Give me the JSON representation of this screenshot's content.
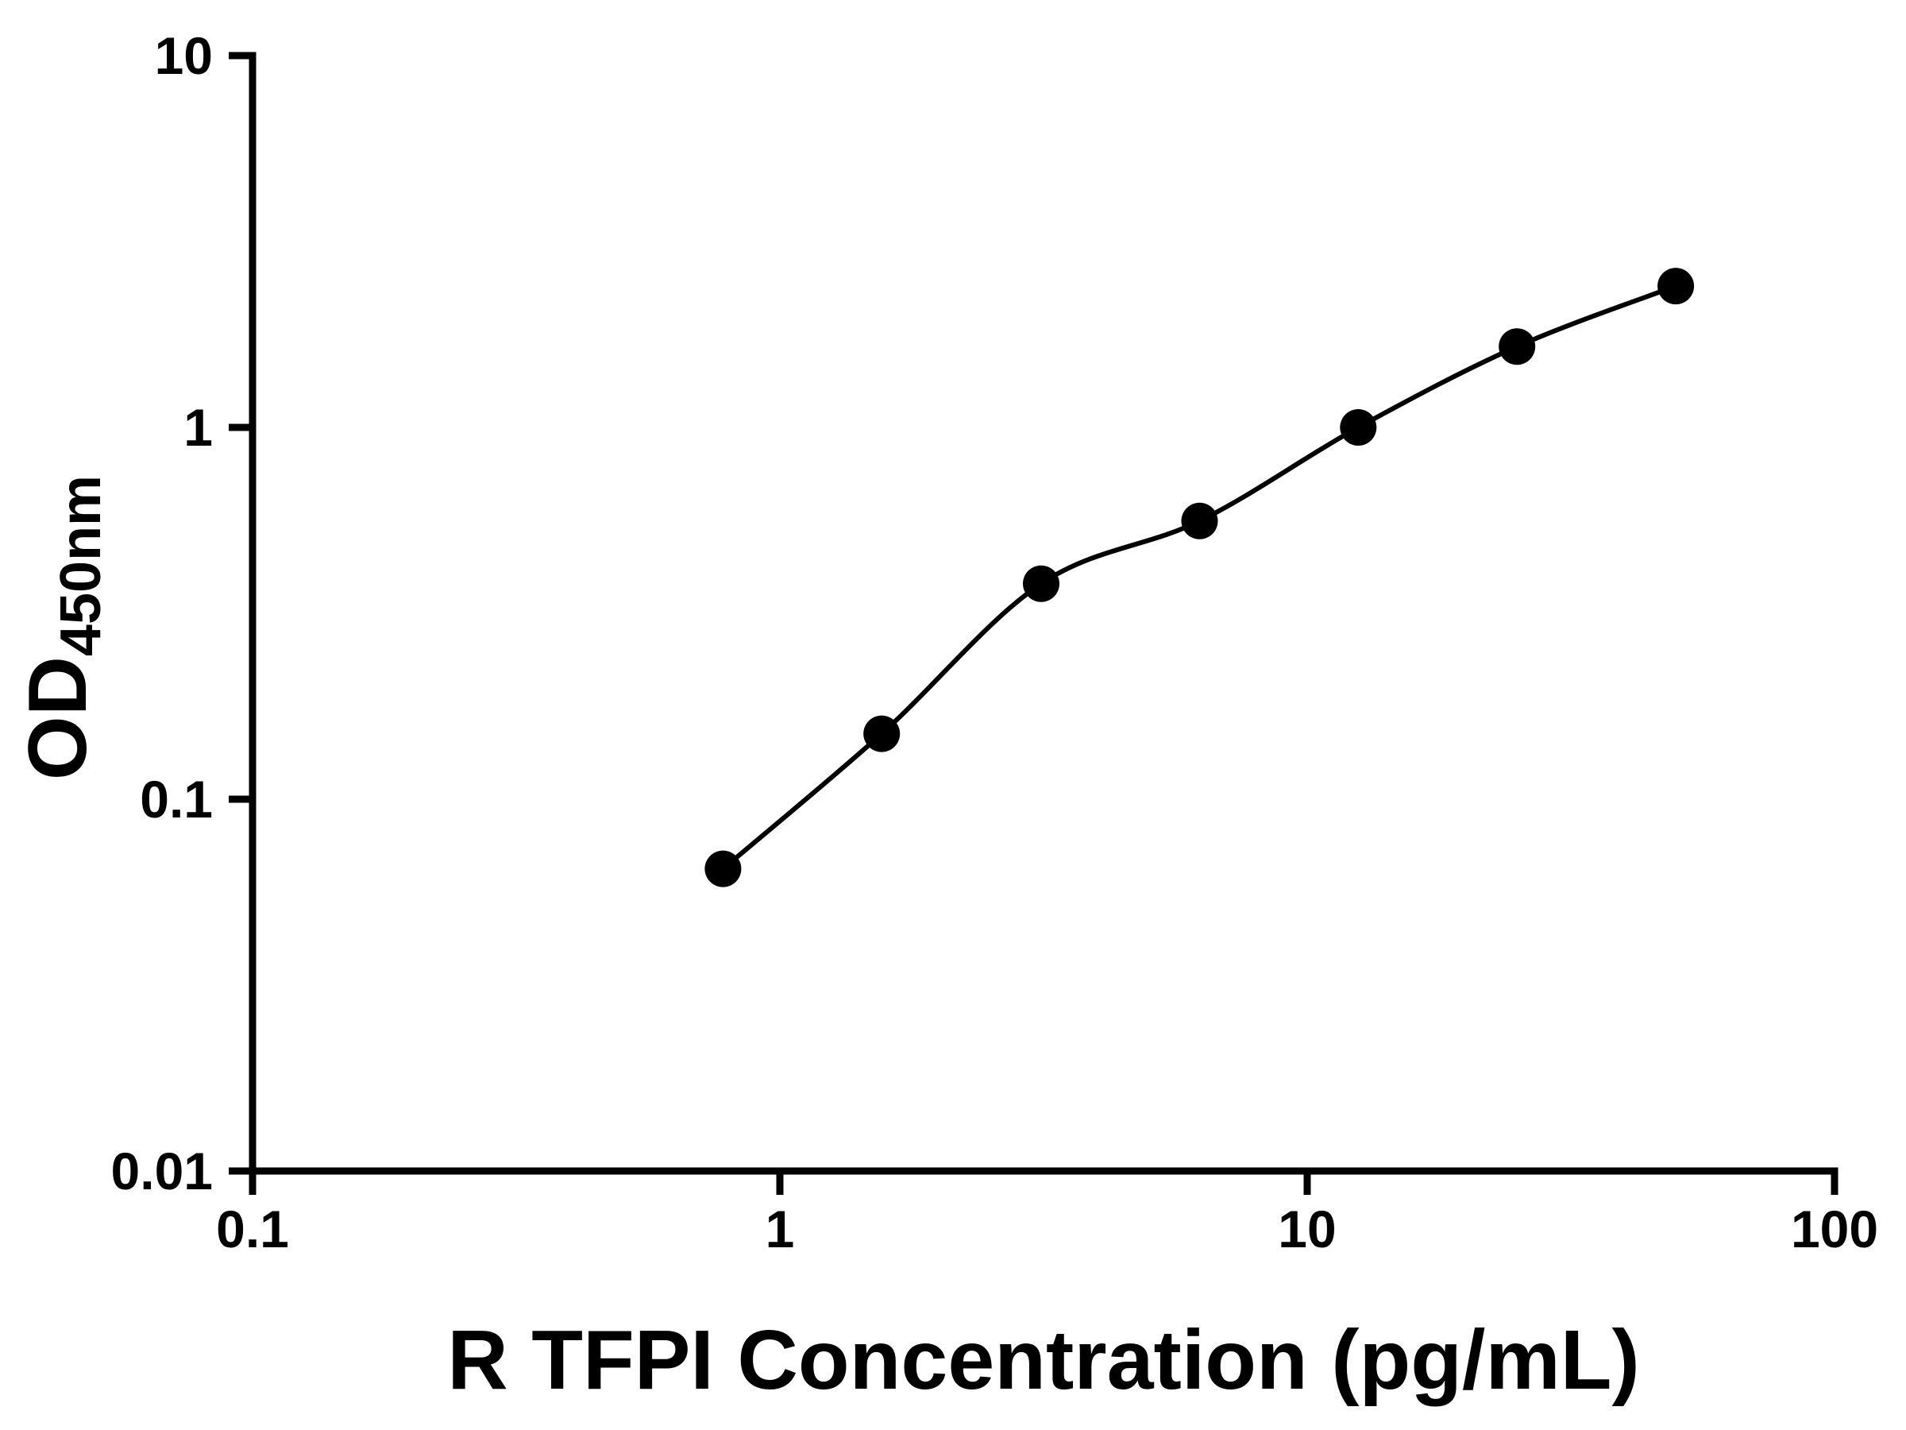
{
  "chart_data": {
    "type": "scatter",
    "title": "",
    "xlabel": "R TFPI Concentration (pg/mL)",
    "ylabel_main": "OD",
    "ylabel_sub": "450nm",
    "x_scale": "log",
    "y_scale": "log",
    "xlim": [
      0.1,
      100
    ],
    "ylim": [
      0.01,
      10
    ],
    "x_ticks": [
      0.1,
      1,
      10,
      100
    ],
    "x_tick_labels": [
      "0.1",
      "1",
      "10",
      "100"
    ],
    "y_ticks": [
      0.01,
      0.1,
      1,
      10
    ],
    "y_tick_labels": [
      "0.01",
      "0.1",
      "1",
      "10"
    ],
    "grid": false,
    "legend": "none",
    "marker_color": "#000000",
    "line_color": "#000000",
    "background_color": "#ffffff",
    "points": [
      {
        "x": 0.78,
        "y": 0.065
      },
      {
        "x": 1.56,
        "y": 0.15
      },
      {
        "x": 3.13,
        "y": 0.38
      },
      {
        "x": 6.25,
        "y": 0.56
      },
      {
        "x": 12.5,
        "y": 1.0
      },
      {
        "x": 25,
        "y": 1.65
      },
      {
        "x": 50,
        "y": 2.4
      }
    ]
  }
}
